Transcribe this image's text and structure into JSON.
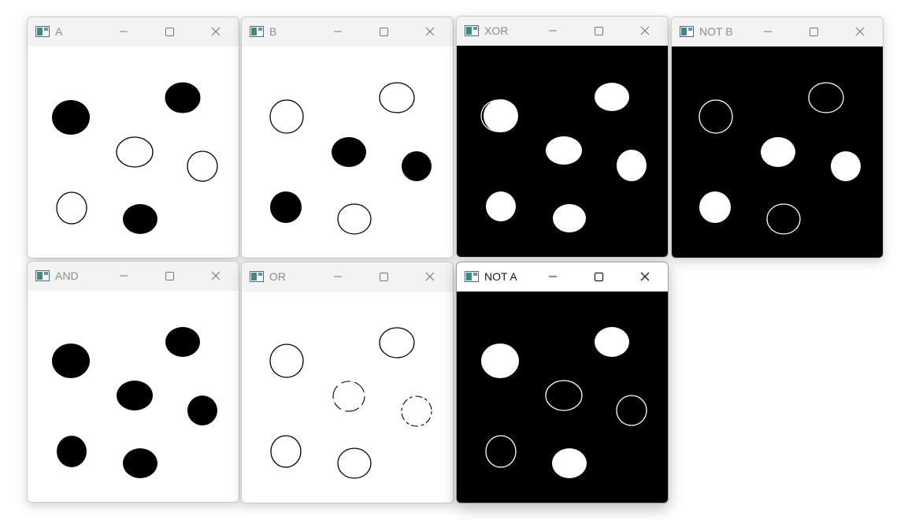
{
  "windows": [
    {
      "title": "A",
      "background": "#ffffff",
      "active": false
    },
    {
      "title": "B",
      "background": "#ffffff",
      "active": false
    },
    {
      "title": "XOR",
      "background": "#000000",
      "active": false
    },
    {
      "title": "NOT B",
      "background": "#000000",
      "active": false
    },
    {
      "title": "AND",
      "background": "#ffffff",
      "active": false
    },
    {
      "title": "OR",
      "background": "#ffffff",
      "active": false
    },
    {
      "title": "NOT A",
      "background": "#000000",
      "active": true
    }
  ],
  "controls": {
    "minimize": "minimize-icon",
    "maximize": "maximize-icon",
    "close": "close-icon"
  },
  "colors": {
    "black": "#000000",
    "white": "#ffffff",
    "titlebar_inactive": "#f3f3f3",
    "title_text_inactive": "#8c8c8c"
  }
}
